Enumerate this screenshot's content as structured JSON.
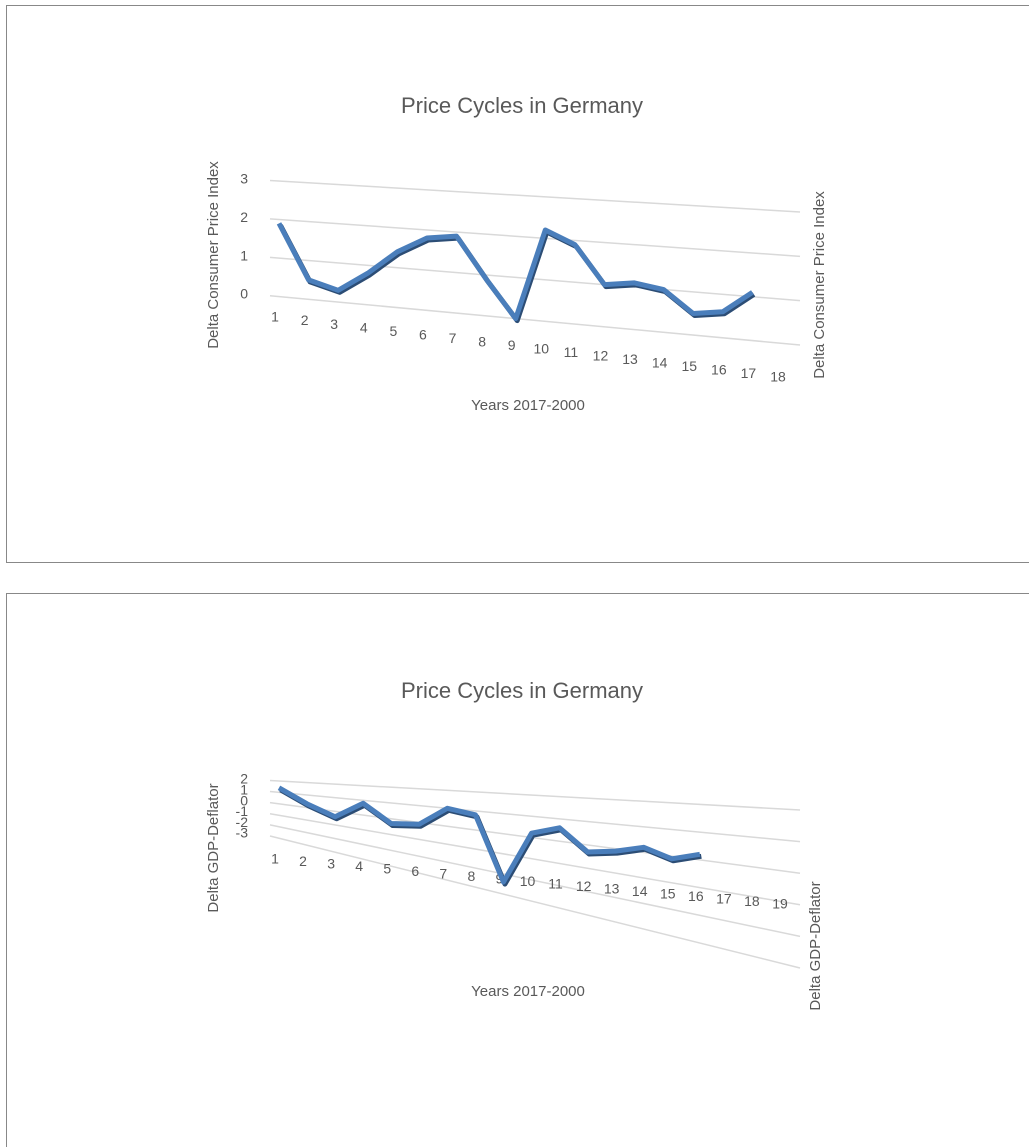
{
  "chart_data": [
    {
      "type": "line",
      "title": "Price Cycles in Germany",
      "xlabel": "Years 2017-2000",
      "ylabel": "Delta Consumer Price Index",
      "categories": [
        "1",
        "2",
        "3",
        "4",
        "5",
        "6",
        "7",
        "8",
        "9",
        "10",
        "11",
        "12",
        "13",
        "14",
        "15",
        "16",
        "17",
        "18"
      ],
      "series": [
        {
          "name": "Delta Consumer Price Index",
          "color": "#4a7ebb",
          "values": [
            1.9,
            0.5,
            0.3,
            0.8,
            1.4,
            1.8,
            1.9,
            0.9,
            0.0,
            2.2,
            1.9,
            1.0,
            1.1,
            1.0,
            0.5,
            0.6,
            1.1,
            null
          ]
        }
      ],
      "ylim": [
        0,
        3
      ],
      "yticks": [
        0,
        1,
        2,
        3
      ],
      "grid": true
    },
    {
      "type": "line",
      "title": "Price Cycles in Germany",
      "xlabel": "Years 2017-2000",
      "ylabel": "Delta GDP-Deflator",
      "categories": [
        "1",
        "2",
        "3",
        "4",
        "5",
        "6",
        "7",
        "8",
        "9",
        "10",
        "11",
        "12",
        "13",
        "14",
        "15",
        "16",
        "17",
        "18",
        "19"
      ],
      "series": [
        {
          "name": "Delta GDP-Deflator",
          "color": "#4a7ebb",
          "values": [
            1.4,
            0.3,
            -0.4,
            0.8,
            -0.3,
            -0.1,
            1.0,
            0.8,
            -2.4,
            0.2,
            0.6,
            -0.3,
            -0.1,
            0.2,
            -0.1,
            0.2,
            null,
            null,
            null
          ]
        }
      ],
      "ylim": [
        -3,
        2
      ],
      "yticks": [
        -3,
        -2,
        -1,
        0,
        1,
        2
      ],
      "grid": true
    }
  ]
}
